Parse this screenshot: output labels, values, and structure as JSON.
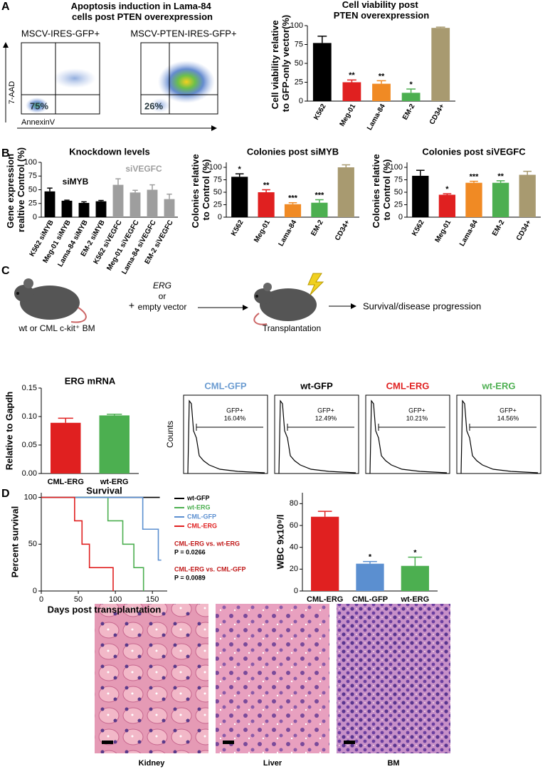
{
  "panel_labels": [
    "A",
    "B",
    "C",
    "D"
  ],
  "panel_a": {
    "title": "Apoptosis induction in Lama-84 cells post PTEN overexpression",
    "y_axis": "7-AAD",
    "x_axis": "AnnexinV",
    "plots": [
      {
        "label": "MSCV-IRES-GFP+",
        "gate": "75%"
      },
      {
        "label": "MSCV-PTEN-IRES-GFP+",
        "gate": "26%"
      }
    ]
  },
  "panel_c": {
    "mouse": "wt or CML c-kit⁺ BM",
    "plus": "+",
    "vector": [
      "ERG",
      "or",
      "empty vector"
    ],
    "transplant": "Transplantation",
    "outcome": "Survival/disease progression",
    "flow_y_axis": "Counts",
    "flow": [
      {
        "title": "CML-GFP",
        "color": "#6a9bd1",
        "gate": "GFP+",
        "percent": "16.04%"
      },
      {
        "title": "wt-GFP",
        "color": "#000000",
        "gate": "GFP+",
        "percent": "12.49%"
      },
      {
        "title": "CML-ERG",
        "color": "#e02020",
        "gate": "GFP+",
        "percent": "10.21%"
      },
      {
        "title": "wt-ERG",
        "color": "#4caf50",
        "gate": "GFP+",
        "percent": "14.56%"
      }
    ]
  },
  "histology": [
    "Kidney",
    "Liver",
    "BM"
  ],
  "chart_data": [
    {
      "type": "bar",
      "title": "Cell viability post PTEN overexpression",
      "y_label": "Cell viability relative to GFP-only vector(%)",
      "categories": [
        "K562",
        "Meg-01",
        "Lama-84",
        "EM-2",
        "CD34+"
      ],
      "values": [
        77,
        25,
        23,
        11,
        97
      ],
      "errors": [
        9,
        3,
        4,
        5,
        1
      ],
      "significance": [
        null,
        "**",
        "**",
        "*",
        null
      ],
      "colors": [
        "#000000",
        "#e02020",
        "#f08a24",
        "#4caf50",
        "#a89a70"
      ],
      "ylim": [
        0,
        100
      ],
      "yticks": [
        0,
        25,
        50,
        75,
        100
      ]
    },
    {
      "type": "bar",
      "title": "Knockdown levels",
      "y_label": "Gene expression realtive Control (%)",
      "categories": [
        "K562 siMYB",
        "Meg-01 siMYB",
        "Lama-84 siMYB",
        "EM-2 siMYB",
        "K562 siVEGFC",
        "Meg-01 siVEGFC",
        "Lama-84 siVEGFC",
        "EM-2 siVEGFC"
      ],
      "values": [
        47,
        30,
        26,
        29,
        59,
        45,
        50,
        33
      ],
      "errors": [
        6,
        1,
        2,
        1.5,
        11,
        4,
        9,
        9
      ],
      "colors": [
        "#000000",
        "#000000",
        "#000000",
        "#000000",
        "#9e9e9e",
        "#9e9e9e",
        "#9e9e9e",
        "#9e9e9e"
      ],
      "group_labels": [
        "siMYB",
        "siVEGFC"
      ],
      "group_colors": [
        "#000000",
        "#9e9e9e"
      ],
      "ylim": [
        0,
        100
      ],
      "yticks": [
        0,
        25,
        50,
        75,
        100
      ]
    },
    {
      "type": "bar",
      "title": "Colonies post siMYB",
      "y_label": "Colonies relative to Control (%)",
      "categories": [
        "K562",
        "Meg-01",
        "Lama-84",
        "EM-2",
        "CD34+"
      ],
      "values": [
        81,
        50,
        26,
        29,
        100
      ],
      "errors": [
        6,
        5,
        3,
        6,
        5
      ],
      "significance": [
        "*",
        "**",
        "***",
        "***",
        null
      ],
      "colors": [
        "#000000",
        "#e02020",
        "#f08a24",
        "#4caf50",
        "#a89a70"
      ],
      "ylim": [
        0,
        110
      ],
      "yticks": [
        0,
        25,
        50,
        75,
        100
      ]
    },
    {
      "type": "bar",
      "title": "Colonies post siVEGFC",
      "y_label": "Colonies relative to Control (%)",
      "categories": [
        "K562",
        "Meg-01",
        "Lama-84",
        "EM-2",
        "CD34+"
      ],
      "values": [
        83,
        45,
        69,
        69,
        85
      ],
      "errors": [
        11,
        2,
        3,
        4,
        7
      ],
      "significance": [
        null,
        "*",
        "***",
        "**",
        null
      ],
      "colors": [
        "#000000",
        "#e02020",
        "#f08a24",
        "#4caf50",
        "#a89a70"
      ],
      "ylim": [
        0,
        110
      ],
      "yticks": [
        0,
        25,
        50,
        75,
        100
      ]
    },
    {
      "type": "bar",
      "title": "ERG mRNA",
      "y_label": "Relative to Gapdh",
      "categories": [
        "CML-ERG",
        "wt-ERG"
      ],
      "values": [
        0.089,
        0.102
      ],
      "errors": [
        0.008,
        0.002
      ],
      "colors": [
        "#e02020",
        "#4caf50"
      ],
      "ylim": [
        0,
        0.15
      ],
      "yticks": [
        {
          "value": 0,
          "label": "0.00"
        },
        {
          "value": 0.05,
          "label": "0.05"
        },
        {
          "value": 0.1,
          "label": "0.10"
        },
        {
          "value": 0.15,
          "label": "0.15"
        }
      ]
    },
    {
      "type": "line",
      "title": "Survival",
      "x_label": "Days post transplantation",
      "y_label": "Percent survival",
      "xlim": [
        0,
        170
      ],
      "ylim": [
        0,
        105
      ],
      "xticks": [
        0,
        50,
        100,
        150
      ],
      "yticks": [
        0,
        50,
        100
      ],
      "legend": "right",
      "series": [
        {
          "name": "wt-GFP",
          "color": "#000000",
          "x": [
            0,
            160
          ],
          "values": [
            100,
            100
          ]
        },
        {
          "name": "wt-ERG",
          "color": "#4caf50",
          "x": [
            0,
            90,
            90,
            110,
            110,
            125,
            125,
            138,
            138
          ],
          "values": [
            100,
            100,
            75,
            75,
            50,
            50,
            25,
            25,
            0
          ]
        },
        {
          "name": "CML-GFP",
          "color": "#5b8fd0",
          "x": [
            0,
            137,
            137,
            158,
            158,
            162
          ],
          "values": [
            100,
            100,
            66,
            66,
            33,
            33
          ]
        },
        {
          "name": "CML-ERG",
          "color": "#e02020",
          "x": [
            0,
            45,
            45,
            55,
            55,
            65,
            65,
            97,
            97
          ],
          "values": [
            100,
            100,
            75,
            75,
            50,
            50,
            25,
            25,
            0
          ]
        }
      ],
      "annotations": [
        "CML-ERG vs. wt-ERG",
        "P = 0.0266",
        "CML-ERG vs. CML-GFP",
        "P = 0.0089"
      ]
    },
    {
      "type": "bar",
      "y_label": "WBC 9x10⁹/l",
      "categories": [
        "CML-ERG",
        "CML-GFP",
        "wt-ERG"
      ],
      "values": [
        68,
        25,
        23
      ],
      "errors": [
        5,
        2,
        8
      ],
      "significance": [
        null,
        "*",
        "*"
      ],
      "colors": [
        "#e02020",
        "#5b8fd0",
        "#4caf50"
      ],
      "ylim": [
        0,
        90
      ],
      "yticks": [
        0,
        20,
        40,
        60,
        80
      ]
    }
  ]
}
